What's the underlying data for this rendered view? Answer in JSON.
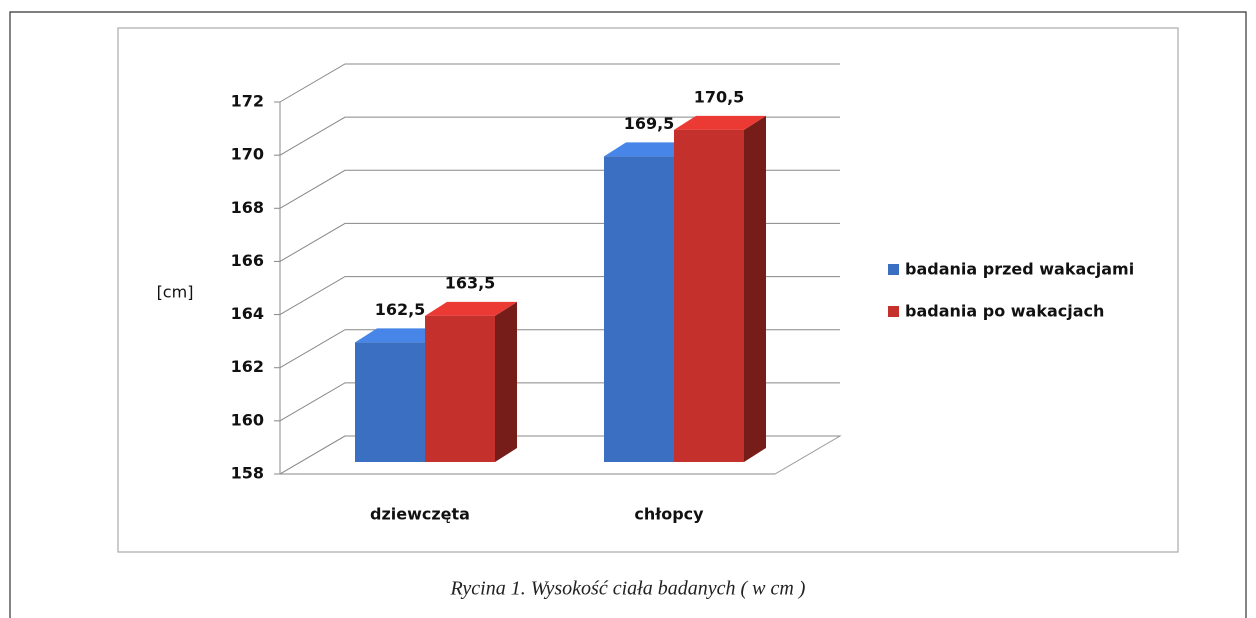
{
  "chart_data": {
    "type": "bar3d",
    "categories": [
      "dziewczęta",
      "chłopcy"
    ],
    "series": [
      {
        "name": "badania przed wakacjami",
        "color": "#3b6fc2",
        "values": [
          162.5,
          169.5
        ],
        "value_labels": [
          "162,5",
          "169,5"
        ]
      },
      {
        "name": "badania po wakacjach",
        "color": "#c4302b",
        "values": [
          163.5,
          170.5
        ],
        "value_labels": [
          "163,5",
          "170,5"
        ]
      }
    ],
    "y_label": "[cm]",
    "ylim": [
      158,
      172
    ],
    "yticks": [
      158,
      160,
      162,
      164,
      166,
      168,
      170,
      172
    ],
    "grid": true,
    "legend": "right",
    "caption": "Rycina 1. Wysokość ciała badanych  ( w cm )"
  }
}
